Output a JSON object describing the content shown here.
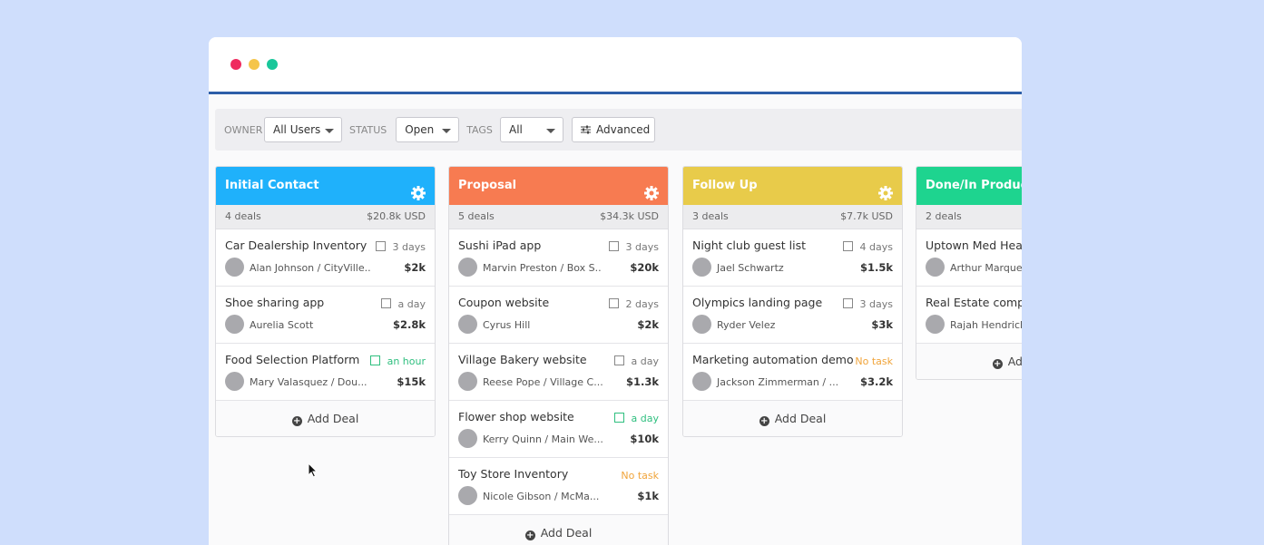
{
  "filters": [
    {
      "label": "OWNER",
      "value": "All Users"
    },
    {
      "label": "STATUS",
      "value": "Open"
    },
    {
      "label": "TAGS",
      "value": "All"
    }
  ],
  "advanced": "Advanced",
  "columns": [
    {
      "title": "Initial Contact",
      "color": "#1fb1fb",
      "count": "4 deals",
      "total": "$20.8k USD",
      "add": "Add Deal",
      "deals": [
        {
          "name": "Car Dealership Inventory",
          "task": "3 days",
          "task_state": "pending",
          "contact": "Alan Johnson / CityVille..",
          "value": "$2k"
        },
        {
          "name": "Shoe sharing app",
          "task": "a day",
          "task_state": "pending",
          "contact": "Aurelia Scott",
          "value": "$2.8k"
        },
        {
          "name": "Food Selection Platform",
          "task": "an hour",
          "task_state": "soon",
          "contact": "Mary Valasquez / Dou...",
          "value": "$15k"
        }
      ]
    },
    {
      "title": "Proposal",
      "color": "#f77b51",
      "count": "5 deals",
      "total": "$34.3k USD",
      "add": "Add Deal",
      "deals": [
        {
          "name": "Sushi iPad app",
          "task": "3 days",
          "task_state": "pending",
          "contact": "Marvin Preston / Box S..",
          "value": "$20k"
        },
        {
          "name": "Coupon website",
          "task": "2 days",
          "task_state": "pending",
          "contact": "Cyrus Hill",
          "value": "$2k"
        },
        {
          "name": "Village Bakery website",
          "task": "a day",
          "task_state": "pending",
          "contact": "Reese Pope / Village C...",
          "value": "$1.3k"
        },
        {
          "name": "Flower shop website",
          "task": "a day",
          "task_state": "soon",
          "contact": "Kerry Quinn / Main We...",
          "value": "$10k"
        },
        {
          "name": "Toy Store Inventory",
          "task": "No task",
          "task_state": "none",
          "contact": "Nicole Gibson / McMa...",
          "value": "$1k"
        }
      ]
    },
    {
      "title": "Follow Up",
      "color": "#e8cb4a",
      "count": "3 deals",
      "total": "$7.7k USD",
      "add": "Add Deal",
      "deals": [
        {
          "name": "Night club guest list",
          "task": "4 days",
          "task_state": "pending",
          "contact": "Jael Schwartz",
          "value": "$1.5k"
        },
        {
          "name": "Olympics landing page",
          "task": "3 days",
          "task_state": "pending",
          "contact": "Ryder Velez",
          "value": "$3k"
        },
        {
          "name": "Marketing automation demo",
          "task": "No task",
          "task_state": "none",
          "contact": "Jackson Zimmerman / ...",
          "value": "$3.2k"
        }
      ]
    },
    {
      "title": "Done/In Production",
      "color": "#1ed48f",
      "count": "2 deals",
      "add": "Add Deal",
      "deals": [
        {
          "name": "Uptown Med Heal",
          "contact": "Arthur Marquez"
        },
        {
          "name": "Real Estate compa",
          "contact": "Rajah Hendricks"
        }
      ]
    }
  ]
}
